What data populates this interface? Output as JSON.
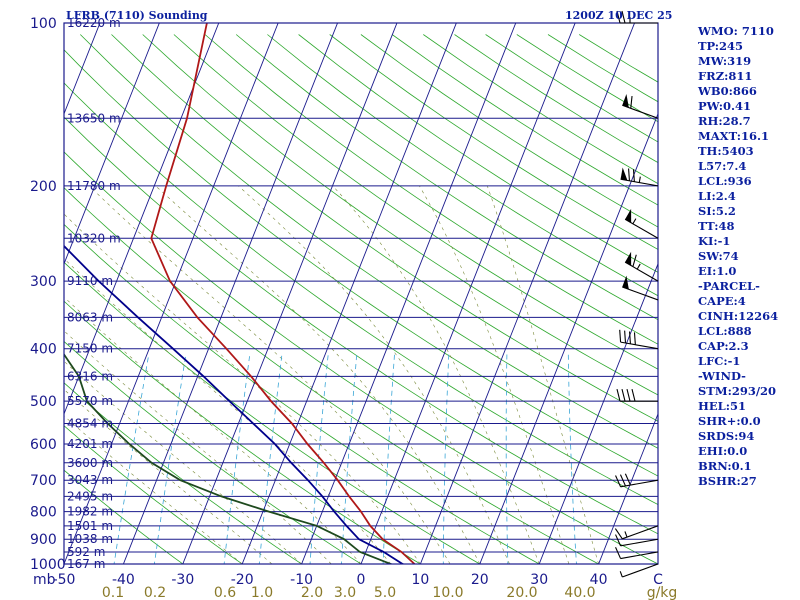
{
  "chart_data": {
    "type": "line",
    "title": "LFRB (7110) Sounding",
    "time": "1200Z 10 DEC 25",
    "y_unit": "mb",
    "x_unit": "°C",
    "mixing_ratio_unit": "g/kg",
    "pressure_ticks": [
      100,
      200,
      300,
      400,
      500,
      600,
      700,
      800,
      900,
      1000
    ],
    "temperature_ticks": [
      -50,
      -40,
      -30,
      -20,
      -10,
      0,
      10,
      20,
      30,
      40
    ],
    "temperature_labels": [
      "-50",
      "-40",
      "-30",
      "-20",
      "-10",
      "0",
      "10",
      "20",
      "30",
      "40"
    ],
    "edge_label": "C",
    "xlim": [
      -50,
      50
    ],
    "ylim": [
      1000,
      100
    ],
    "height_levels": [
      {
        "p": 100,
        "label": "16220 m"
      },
      {
        "p": 150,
        "label": "13650 m"
      },
      {
        "p": 200,
        "label": "11780 m"
      },
      {
        "p": 250,
        "label": "10320 m"
      },
      {
        "p": 300,
        "label": "9110 m"
      },
      {
        "p": 350,
        "label": "8063 m"
      },
      {
        "p": 400,
        "label": "7150 m"
      },
      {
        "p": 450,
        "label": "6316 m"
      },
      {
        "p": 500,
        "label": "5570 m"
      },
      {
        "p": 550,
        "label": "4854 m"
      },
      {
        "p": 600,
        "label": "4201 m"
      },
      {
        "p": 650,
        "label": "3600 m"
      },
      {
        "p": 700,
        "label": "3043 m"
      },
      {
        "p": 750,
        "label": "2495 m"
      },
      {
        "p": 800,
        "label": "1982 m"
      },
      {
        "p": 850,
        "label": "1501 m"
      },
      {
        "p": 900,
        "label": "1038 m"
      },
      {
        "p": 950,
        "label": "592 m"
      },
      {
        "p": 1000,
        "label": "167 m"
      }
    ],
    "mixing_ratio_lines": [
      {
        "w": 0.1,
        "label": "0.1"
      },
      {
        "w": 0.2,
        "label": "0.2"
      },
      {
        "w": 0.6,
        "label": "0.6"
      },
      {
        "w": 1.0,
        "label": "1.0"
      },
      {
        "w": 2.0,
        "label": "2.0"
      },
      {
        "w": 3.0,
        "label": "3.0"
      },
      {
        "w": 5.0,
        "label": "5.0"
      },
      {
        "w": 10.0,
        "label": "10.0"
      },
      {
        "w": 20.0,
        "label": "20.0"
      },
      {
        "w": 40.0,
        "label": "40.0"
      }
    ],
    "series": [
      {
        "name": "Temperature",
        "color": "#b01818",
        "points": [
          {
            "p": 1020,
            "t": 10
          },
          {
            "p": 1000,
            "t": 9
          },
          {
            "p": 950,
            "t": 6
          },
          {
            "p": 900,
            "t": 2
          },
          {
            "p": 850,
            "t": -1
          },
          {
            "p": 800,
            "t": -3.5
          },
          {
            "p": 750,
            "t": -6.5
          },
          {
            "p": 700,
            "t": -9.5
          },
          {
            "p": 650,
            "t": -13
          },
          {
            "p": 600,
            "t": -17
          },
          {
            "p": 550,
            "t": -21
          },
          {
            "p": 500,
            "t": -26
          },
          {
            "p": 450,
            "t": -31
          },
          {
            "p": 400,
            "t": -37
          },
          {
            "p": 350,
            "t": -44
          },
          {
            "p": 300,
            "t": -51
          },
          {
            "p": 250,
            "t": -57
          },
          {
            "p": 200,
            "t": -58
          },
          {
            "p": 150,
            "t": -59
          },
          {
            "p": 100,
            "t": -62
          }
        ]
      },
      {
        "name": "Dew point",
        "color": "#1e4a1e",
        "points": [
          {
            "p": 1020,
            "t": 8
          },
          {
            "p": 1000,
            "t": 5
          },
          {
            "p": 950,
            "t": -1
          },
          {
            "p": 900,
            "t": -4.5
          },
          {
            "p": 850,
            "t": -10
          },
          {
            "p": 800,
            "t": -19
          },
          {
            "p": 750,
            "t": -28
          },
          {
            "p": 700,
            "t": -36
          },
          {
            "p": 650,
            "t": -42
          },
          {
            "p": 600,
            "t": -47
          },
          {
            "p": 550,
            "t": -52
          },
          {
            "p": 500,
            "t": -57
          },
          {
            "p": 450,
            "t": -60
          },
          {
            "p": 400,
            "t": -65
          },
          {
            "p": 350,
            "t": -70
          },
          {
            "p": 300,
            "t": -75
          },
          {
            "p": 260,
            "t": -78
          },
          {
            "p": 250,
            "t": -81
          },
          {
            "p": 200,
            "t": -84
          },
          {
            "p": 150,
            "t": -86
          },
          {
            "p": 100,
            "t": -89
          }
        ]
      },
      {
        "name": "Parcel path",
        "color": "#00008b",
        "points": [
          {
            "p": 1020,
            "t": 9
          },
          {
            "p": 1000,
            "t": 7
          },
          {
            "p": 950,
            "t": 3
          },
          {
            "p": 900,
            "t": -2
          },
          {
            "p": 850,
            "t": -5
          },
          {
            "p": 800,
            "t": -8
          },
          {
            "p": 750,
            "t": -11
          },
          {
            "p": 700,
            "t": -14.5
          },
          {
            "p": 650,
            "t": -18.5
          },
          {
            "p": 600,
            "t": -22.5
          },
          {
            "p": 550,
            "t": -27.5
          },
          {
            "p": 500,
            "t": -33
          },
          {
            "p": 450,
            "t": -39
          },
          {
            "p": 400,
            "t": -46
          },
          {
            "p": 350,
            "t": -54
          },
          {
            "p": 300,
            "t": -63
          },
          {
            "p": 250,
            "t": -73
          },
          {
            "p": 200,
            "t": -85
          },
          {
            "p": 150,
            "t": -100
          },
          {
            "p": 110,
            "t": -118
          }
        ]
      }
    ],
    "wind_barbs": [
      {
        "p": 100,
        "dir": 270,
        "kt": 25
      },
      {
        "p": 150,
        "dir": 290,
        "kt": 60
      },
      {
        "p": 200,
        "dir": 280,
        "kt": 75
      },
      {
        "p": 250,
        "dir": 300,
        "kt": 55
      },
      {
        "p": 300,
        "dir": 300,
        "kt": 65
      },
      {
        "p": 325,
        "dir": 290,
        "kt": 50
      },
      {
        "p": 400,
        "dir": 280,
        "kt": 40
      },
      {
        "p": 500,
        "dir": 270,
        "kt": 40
      },
      {
        "p": 700,
        "dir": 260,
        "kt": 30
      },
      {
        "p": 850,
        "dir": 250,
        "kt": 15
      },
      {
        "p": 900,
        "dir": 260,
        "kt": 10
      },
      {
        "p": 950,
        "dir": 260,
        "kt": 10
      },
      {
        "p": 1000,
        "dir": 250,
        "kt": 5
      }
    ]
  },
  "stats": [
    "WMO: 7110",
    "TP:245",
    "MW:319",
    "FRZ:811",
    "WB0:866",
    "PW:0.41",
    "RH:28.7",
    "MAXT:16.1",
    "TH:5403",
    "L57:7.4",
    "LCL:936",
    "LI:2.4",
    "SI:5.2",
    "TT:48",
    "KI:-1",
    "SW:74",
    "EI:1.0",
    "-PARCEL-",
    "CAPE:4",
    "CINH:12264",
    "LCL:888",
    "CAP:2.3",
    "LFC:-1",
    "-WIND-",
    "STM:293/20",
    "HEL:51",
    "SHR+:0.0",
    "SRDS:94",
    "EHI:0.0",
    "BRN:0.1",
    "BSHR:27"
  ]
}
